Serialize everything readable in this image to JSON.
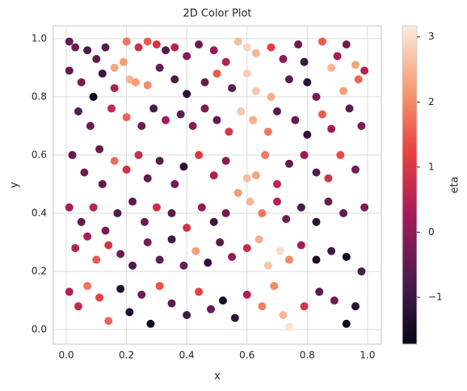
{
  "chart_data": {
    "type": "scatter",
    "title": "2D Color Plot",
    "x_label": "x",
    "y_label": "y",
    "colorbar_label": "eta",
    "colormap": "rocket",
    "grid": true,
    "xlim": [
      -0.043,
      1.046
    ],
    "ylim": [
      -0.05,
      1.044
    ],
    "clim": [
      -1.72,
      3.17
    ],
    "xticks": [
      {
        "value": 0,
        "label": "0.0"
      },
      0.2,
      0.4,
      0.6,
      0.8,
      {
        "value": 1,
        "label": "1.0"
      }
    ],
    "yticks": [
      {
        "value": 0,
        "label": "0.0"
      },
      0.2,
      0.4,
      0.6,
      0.8,
      {
        "value": 1,
        "label": "1.0"
      }
    ],
    "cticks": [
      {
        "value": -1,
        "label": "−1"
      },
      0,
      1,
      2,
      3
    ],
    "x": [
      0.01,
      0.03,
      0.07,
      0.1,
      0.13,
      0.2,
      0.16,
      0.19,
      0.21,
      0.24,
      0.27,
      0.3,
      0.33,
      0.36,
      0.4,
      0.44,
      0.49,
      0.53,
      0.57,
      0.6,
      0.63,
      0.68,
      0.72,
      0.77,
      0.79,
      0.85,
      0.9,
      0.93,
      0.96,
      0.99,
      0.01,
      0.05,
      0.09,
      0.12,
      0.16,
      0.23,
      0.27,
      0.31,
      0.36,
      0.4,
      0.46,
      0.5,
      0.55,
      0.6,
      0.63,
      0.68,
      0.74,
      0.8,
      0.83,
      0.88,
      0.92,
      0.97,
      0.04,
      0.08,
      0.11,
      0.15,
      0.2,
      0.25,
      0.29,
      0.33,
      0.38,
      0.42,
      0.46,
      0.5,
      0.54,
      0.58,
      0.62,
      0.67,
      0.7,
      0.76,
      0.8,
      0.85,
      0.88,
      0.94,
      0.98,
      0.02,
      0.06,
      0.12,
      0.16,
      0.2,
      0.24,
      0.27,
      0.31,
      0.36,
      0.39,
      0.44,
      0.49,
      0.53,
      0.6,
      0.63,
      0.66,
      0.7,
      0.74,
      0.79,
      0.83,
      0.87,
      0.91,
      0.96,
      0.01,
      0.05,
      0.09,
      0.13,
      0.17,
      0.22,
      0.26,
      0.3,
      0.35,
      0.4,
      0.45,
      0.49,
      0.53,
      0.57,
      0.61,
      0.65,
      0.7,
      0.73,
      0.78,
      0.83,
      0.87,
      0.92,
      0.99,
      0.03,
      0.07,
      0.1,
      0.14,
      0.18,
      0.22,
      0.27,
      0.31,
      0.35,
      0.39,
      0.43,
      0.47,
      0.51,
      0.55,
      0.6,
      0.64,
      0.67,
      0.71,
      0.74,
      0.78,
      0.83,
      0.88,
      0.93,
      0.98,
      0.01,
      0.04,
      0.07,
      0.11,
      0.14,
      0.18,
      0.21,
      0.25,
      0.28,
      0.31,
      0.35,
      0.4,
      0.44,
      0.48,
      0.52,
      0.56,
      0.6,
      0.65,
      0.69,
      0.72,
      0.74,
      0.79,
      0.84,
      0.89,
      0.93,
      0.96
    ],
    "y": [
      0.99,
      0.97,
      0.96,
      0.93,
      0.97,
      0.99,
      0.9,
      0.92,
      0.86,
      0.97,
      0.99,
      0.98,
      0.96,
      0.97,
      0.94,
      0.98,
      0.96,
      0.92,
      0.99,
      0.97,
      0.95,
      0.97,
      0.93,
      0.98,
      0.92,
      0.99,
      0.94,
      0.98,
      0.91,
      0.89,
      0.89,
      0.85,
      0.8,
      0.88,
      0.83,
      0.85,
      0.84,
      0.9,
      0.86,
      0.81,
      0.85,
      0.88,
      0.83,
      0.88,
      0.82,
      0.8,
      0.86,
      0.85,
      0.8,
      0.9,
      0.82,
      0.86,
      0.75,
      0.7,
      0.62,
      0.76,
      0.73,
      0.7,
      0.76,
      0.72,
      0.74,
      0.7,
      0.76,
      0.72,
      0.68,
      0.75,
      0.72,
      0.68,
      0.75,
      0.72,
      0.67,
      0.74,
      0.69,
      0.76,
      0.7,
      0.6,
      0.54,
      0.5,
      0.58,
      0.55,
      0.6,
      0.52,
      0.58,
      0.5,
      0.56,
      0.6,
      0.53,
      0.58,
      0.52,
      0.53,
      0.6,
      0.5,
      0.57,
      0.6,
      0.54,
      0.52,
      0.6,
      0.55,
      0.42,
      0.37,
      0.42,
      0.34,
      0.4,
      0.44,
      0.37,
      0.42,
      0.4,
      0.35,
      0.42,
      0.37,
      0.4,
      0.47,
      0.44,
      0.4,
      0.44,
      0.38,
      0.42,
      0.37,
      0.44,
      0.4,
      0.42,
      0.28,
      0.32,
      0.24,
      0.29,
      0.26,
      0.22,
      0.3,
      0.24,
      0.31,
      0.22,
      0.27,
      0.23,
      0.3,
      0.25,
      0.28,
      0.31,
      0.22,
      0.27,
      0.24,
      0.29,
      0.24,
      0.27,
      0.25,
      0.2,
      0.13,
      0.08,
      0.15,
      0.11,
      0.03,
      0.14,
      0.06,
      0.12,
      0.02,
      0.15,
      0.09,
      0.05,
      0.13,
      0.07,
      0.1,
      0.04,
      0.12,
      0.08,
      0.15,
      0.05,
      0.01,
      0.08,
      0.13,
      0.1,
      0.02,
      0.08
    ],
    "color_values": [
      -0.5,
      -0.3,
      -0.8,
      -0.5,
      -0.6,
      1.8,
      2.3,
      2.2,
      2.5,
      0.8,
      1.5,
      1.0,
      -0.6,
      0.5,
      0.0,
      -0.4,
      0.2,
      0.5,
      2.6,
      2.9,
      2.5,
      1.2,
      0.0,
      -0.4,
      -1.0,
      1.5,
      0.3,
      -0.3,
      2.3,
      0.5,
      -0.5,
      -0.2,
      -1.6,
      -1.0,
      0.5,
      2.2,
      2.0,
      -0.4,
      -0.8,
      -1.2,
      -0.4,
      1.5,
      -0.5,
      2.8,
      2.7,
      2.4,
      -0.5,
      -1.2,
      -0.2,
      2.5,
      2.2,
      1.6,
      -0.7,
      -0.3,
      -0.4,
      0.7,
      1.6,
      -0.3,
      -0.8,
      0.3,
      -0.6,
      0.0,
      -0.2,
      -0.5,
      1.0,
      2.7,
      2.4,
      1.8,
      -0.6,
      -0.4,
      -1.1,
      1.5,
      0.2,
      -0.5,
      -0.2,
      -0.4,
      -0.3,
      -0.5,
      1.7,
      0.9,
      0.8,
      -0.5,
      -0.7,
      -0.3,
      -1.2,
      1.0,
      0.4,
      0.0,
      2.6,
      2.3,
      1.8,
      0.6,
      -0.5,
      0.2,
      -0.6,
      0.9,
      1.3,
      -0.3,
      0.3,
      -0.5,
      0.5,
      -0.2,
      -0.7,
      -0.6,
      -0.4,
      0.8,
      -0.6,
      0.9,
      0.1,
      -1.0,
      -0.3,
      2.2,
      2.5,
      1.8,
      0.5,
      -0.3,
      -0.8,
      -1.2,
      -0.4,
      -0.6,
      -0.2,
      0.5,
      0.3,
      1.5,
      0.9,
      -0.4,
      -0.8,
      -0.3,
      -0.5,
      -0.9,
      -0.4,
      2.2,
      -1.2,
      -0.6,
      0.1,
      0.7,
      2.4,
      2.7,
      3.0,
      2.0,
      0.3,
      -1.4,
      -0.9,
      -1.5,
      -0.8,
      0.4,
      0.7,
      1.8,
      1.2,
      1.6,
      -1.3,
      -1.4,
      -0.3,
      -1.6,
      1.4,
      -0.6,
      -0.9,
      1.2,
      -0.4,
      -1.5,
      -1.1,
      0.4,
      1.9,
      2.0,
      2.5,
      3.1,
      0.9,
      -0.6,
      -0.3,
      -1.7,
      -1.2
    ]
  }
}
